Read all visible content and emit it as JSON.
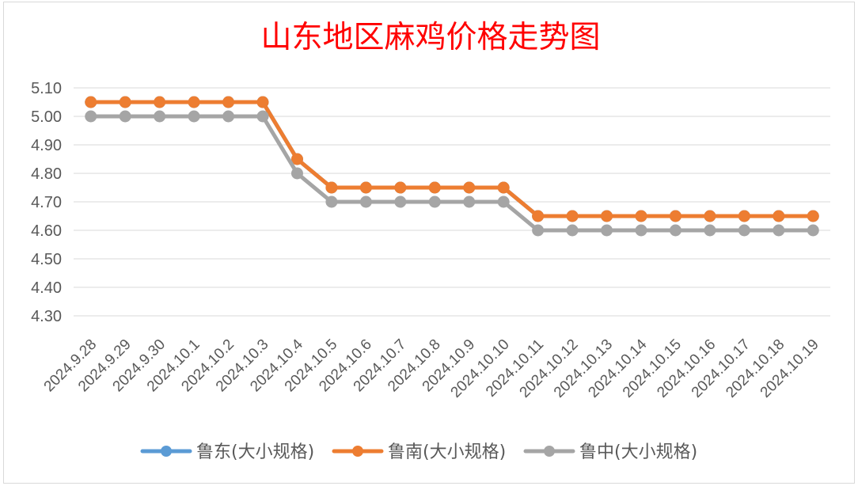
{
  "chart_data": {
    "type": "line",
    "title": "山东地区麻鸡价格走势图",
    "categories": [
      "2024.9.28",
      "2024.9.29",
      "2024.9.30",
      "2024.10.1",
      "2024.10.2",
      "2024.10.3",
      "2024.10.4",
      "2024.10.5",
      "2024.10.6",
      "2024.10.7",
      "2024.10.8",
      "2024.10.9",
      "2024.10.10",
      "2024.10.11",
      "2024.10.12",
      "2024.10.13",
      "2024.10.14",
      "2024.10.15",
      "2024.10.16",
      "2024.10.17",
      "2024.10.18",
      "2024.10.19"
    ],
    "y_ticks": [
      "5.10",
      "5.00",
      "4.90",
      "4.80",
      "4.70",
      "4.60",
      "4.50",
      "4.40",
      "4.30"
    ],
    "ylim": [
      4.3,
      5.1
    ],
    "grid": true,
    "legend_position": "bottom",
    "series": [
      {
        "name": "鲁东(大小规格)",
        "color": "#5B9BD5",
        "values": [
          5.05,
          5.05,
          5.05,
          5.05,
          5.05,
          5.05,
          4.85,
          4.75,
          4.75,
          4.75,
          4.75,
          4.75,
          4.75,
          4.65,
          4.65,
          4.65,
          4.65,
          4.65,
          4.65,
          4.65,
          4.65,
          4.65
        ]
      },
      {
        "name": "鲁南(大小规格)",
        "color": "#ED7D31",
        "values": [
          5.05,
          5.05,
          5.05,
          5.05,
          5.05,
          5.05,
          4.85,
          4.75,
          4.75,
          4.75,
          4.75,
          4.75,
          4.75,
          4.65,
          4.65,
          4.65,
          4.65,
          4.65,
          4.65,
          4.65,
          4.65,
          4.65
        ]
      },
      {
        "name": "鲁中(大小规格)",
        "color": "#A5A5A5",
        "values": [
          5.0,
          5.0,
          5.0,
          5.0,
          5.0,
          5.0,
          4.8,
          4.7,
          4.7,
          4.7,
          4.7,
          4.7,
          4.7,
          4.6,
          4.6,
          4.6,
          4.6,
          4.6,
          4.6,
          4.6,
          4.6,
          4.6
        ]
      }
    ]
  },
  "colors": {
    "title": "#FF0000",
    "axis_text": "#595959",
    "grid": "#D9D9D9",
    "frame": "#D9D9D9"
  }
}
